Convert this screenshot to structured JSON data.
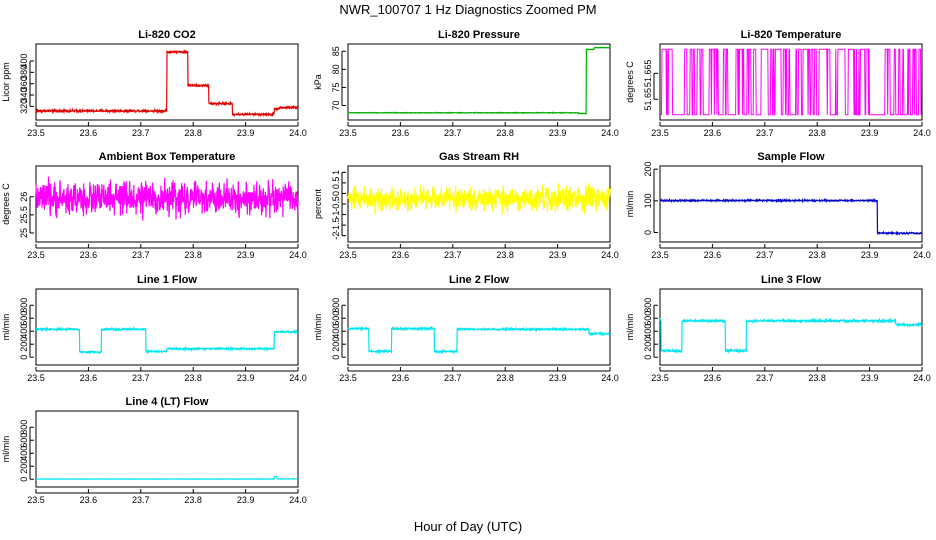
{
  "figure": {
    "title": "NWR_100707  1 Hz Diagnostics Zoomed PM",
    "xlabel": "Hour of Day (UTC)"
  },
  "chart_data": [
    {
      "type": "line",
      "title": "Li-820 CO2",
      "ylabel": "Licor ppm",
      "color": "#e00000",
      "xlim": [
        23.5,
        24.0
      ],
      "ylim": [
        296,
        430
      ],
      "yticks": [
        320,
        340,
        360,
        380,
        400
      ],
      "xticks": [
        23.5,
        23.6,
        23.7,
        23.8,
        23.9,
        24.0
      ],
      "noise": 1.2,
      "segments": [
        [
          23.5,
          23.75,
          312
        ],
        [
          23.75,
          23.79,
          416
        ],
        [
          23.79,
          23.83,
          357
        ],
        [
          23.83,
          23.875,
          325
        ],
        [
          23.875,
          23.955,
          306
        ],
        [
          23.955,
          23.965,
          316
        ],
        [
          23.965,
          24.0,
          318
        ]
      ]
    },
    {
      "type": "line",
      "title": "Li-820 Pressure",
      "ylabel": "kPa",
      "color": "#00b000",
      "xlim": [
        23.5,
        24.0
      ],
      "ylim": [
        66,
        87
      ],
      "yticks": [
        70,
        75,
        80,
        85
      ],
      "xticks": [
        23.5,
        23.6,
        23.7,
        23.8,
        23.9,
        24.0
      ],
      "noise": 0.05,
      "segments": [
        [
          23.5,
          23.94,
          68
        ],
        [
          23.94,
          23.955,
          67.8
        ],
        [
          23.955,
          23.97,
          85.5
        ],
        [
          23.97,
          24.0,
          86
        ]
      ]
    },
    {
      "type": "binary",
      "title": "Li-820 Temperature",
      "ylabel": "degrees C",
      "color": "#ff00ff",
      "xlim": [
        23.5,
        24.0
      ],
      "ylim": [
        51.638,
        51.682
      ],
      "yticks": [
        51.65,
        51.665
      ],
      "xticks": [
        23.5,
        23.6,
        23.7,
        23.8,
        23.9,
        24.0
      ],
      "levels": [
        51.641,
        51.679
      ]
    },
    {
      "type": "line",
      "title": "Ambient Box Temperature",
      "ylabel": "degrees C",
      "color": "#ff00ff",
      "xlim": [
        23.5,
        24.0
      ],
      "ylim": [
        24.75,
        26.85
      ],
      "yticks": [
        25.0,
        25.5,
        26.0
      ],
      "xticks": [
        23.5,
        23.6,
        23.7,
        23.8,
        23.9,
        24.0
      ],
      "noise": 0.28,
      "segments": [
        [
          23.5,
          24.0,
          25.95
        ]
      ]
    },
    {
      "type": "line",
      "title": "Gas Stream RH",
      "ylabel": "percent",
      "color": "#ffff00",
      "xlim": [
        23.5,
        24.0
      ],
      "ylim": [
        -2.3,
        1.3
      ],
      "yticks": [
        -2.0,
        -1.5,
        -1.0,
        -0.5,
        0.0,
        0.5,
        1.0
      ],
      "xticks": [
        23.5,
        23.6,
        23.7,
        23.8,
        23.9,
        24.0
      ],
      "noise": 0.35,
      "segments": [
        [
          23.5,
          24.0,
          -0.25
        ]
      ]
    },
    {
      "type": "line",
      "title": "Sample Flow",
      "ylabel": "ml/min",
      "color": "#0000cc",
      "xlim": [
        23.5,
        24.0
      ],
      "ylim": [
        -30,
        210
      ],
      "yticks": [
        0,
        100,
        200
      ],
      "xticks": [
        23.5,
        23.6,
        23.7,
        23.8,
        23.9,
        24.0
      ],
      "noise": 1.5,
      "segments": [
        [
          23.5,
          23.915,
          101
        ],
        [
          23.915,
          24.0,
          -2
        ]
      ]
    },
    {
      "type": "line",
      "title": "Line 1 Flow",
      "ylabel": "ml/min",
      "color": "#00e5ee",
      "xlim": [
        23.5,
        24.0
      ],
      "ylim": [
        -120,
        1050
      ],
      "yticks": [
        0,
        200,
        400,
        600,
        800
      ],
      "xticks": [
        23.5,
        23.6,
        23.7,
        23.8,
        23.9,
        24.0
      ],
      "noise": 8,
      "segments": [
        [
          23.5,
          23.583,
          430
        ],
        [
          23.583,
          23.625,
          80
        ],
        [
          23.625,
          23.71,
          430
        ],
        [
          23.71,
          23.75,
          90
        ],
        [
          23.75,
          23.955,
          130
        ],
        [
          23.955,
          24.0,
          390
        ]
      ]
    },
    {
      "type": "line",
      "title": "Line 2 Flow",
      "ylabel": "ml/min",
      "color": "#00e5ee",
      "xlim": [
        23.5,
        24.0
      ],
      "ylim": [
        -120,
        1050
      ],
      "yticks": [
        0,
        200,
        400,
        600,
        800
      ],
      "xticks": [
        23.5,
        23.6,
        23.7,
        23.8,
        23.9,
        24.0
      ],
      "noise": 8,
      "segments": [
        [
          23.5,
          23.54,
          440
        ],
        [
          23.54,
          23.583,
          90
        ],
        [
          23.583,
          23.665,
          440
        ],
        [
          23.665,
          23.708,
          90
        ],
        [
          23.708,
          23.96,
          430
        ],
        [
          23.96,
          24.0,
          360
        ]
      ]
    },
    {
      "type": "line",
      "title": "Line 3 Flow",
      "ylabel": "ml/min",
      "color": "#00e5ee",
      "xlim": [
        23.5,
        24.0
      ],
      "ylim": [
        -120,
        1050
      ],
      "yticks": [
        0,
        200,
        400,
        600,
        800
      ],
      "xticks": [
        23.5,
        23.6,
        23.7,
        23.8,
        23.9,
        24.0
      ],
      "noise": 10,
      "segments": [
        [
          23.5,
          23.502,
          580
        ],
        [
          23.502,
          23.542,
          100
        ],
        [
          23.542,
          23.625,
          560
        ],
        [
          23.625,
          23.665,
          100
        ],
        [
          23.665,
          23.95,
          560
        ],
        [
          23.95,
          24.0,
          500
        ]
      ]
    },
    {
      "type": "line",
      "title": "Line 4 (LT) Flow",
      "ylabel": "ml/min",
      "color": "#00e5ee",
      "xlim": [
        23.5,
        24.0
      ],
      "ylim": [
        -120,
        1050
      ],
      "yticks": [
        0,
        200,
        400,
        600,
        800
      ],
      "xticks": [
        23.5,
        23.6,
        23.7,
        23.8,
        23.9,
        24.0
      ],
      "noise": 1.5,
      "segments": [
        [
          23.5,
          23.955,
          3
        ],
        [
          23.955,
          23.96,
          40
        ],
        [
          23.96,
          24.0,
          5
        ]
      ]
    }
  ]
}
